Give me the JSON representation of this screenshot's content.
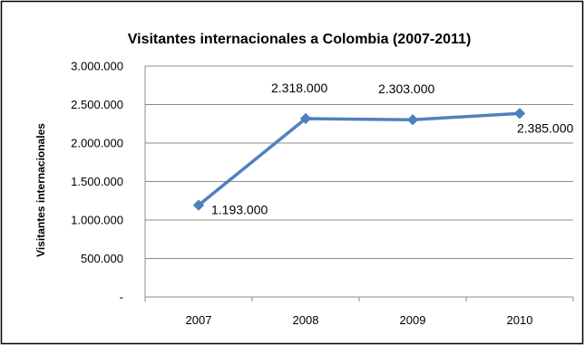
{
  "chart_data": {
    "type": "line",
    "title": "Visitantes internacionales a Colombia (2007-2011)",
    "xlabel": "",
    "ylabel": "Visitantes internacionales",
    "categories": [
      "2007",
      "2008",
      "2009",
      "2010"
    ],
    "series": [
      {
        "values": [
          1193000,
          2318000,
          2303000,
          2385000
        ],
        "data_labels": [
          "1.193.000",
          "2.318.000",
          "2.303.000",
          "2.385.000"
        ],
        "color": "#4f81bd",
        "marker": "diamond"
      }
    ],
    "ylim": [
      0,
      3000000
    ],
    "yticks": [
      0,
      500000,
      1000000,
      1500000,
      2000000,
      2500000,
      3000000
    ],
    "ytick_labels": [
      "-",
      "500.000",
      "1.000.000",
      "1.500.000",
      "2.000.000",
      "2.500.000",
      "3.000.000"
    ],
    "grid": true,
    "legend": "none"
  }
}
